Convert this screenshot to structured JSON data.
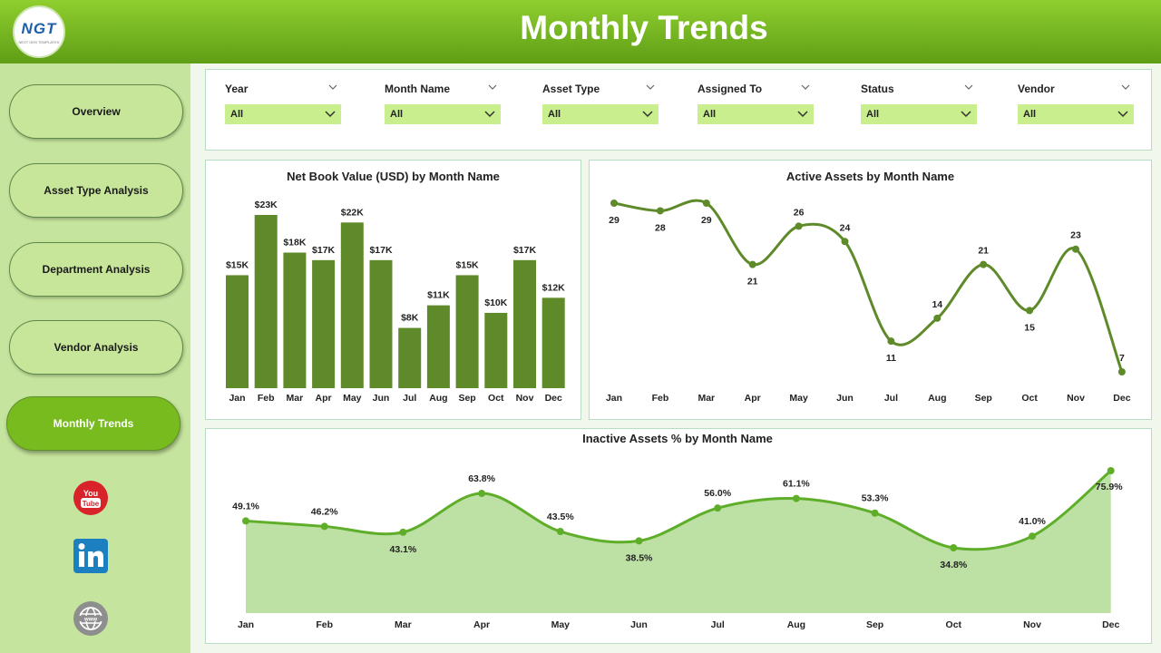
{
  "header": {
    "title": "Monthly Trends",
    "logo_text": "NGT",
    "logo_subtitle": "NEXT GEN TEMPLATES"
  },
  "sidebar": {
    "items": [
      {
        "label": "Overview"
      },
      {
        "label": "Asset Type Analysis"
      },
      {
        "label": "Department Analysis"
      },
      {
        "label": "Vendor Analysis"
      },
      {
        "label": "Monthly Trends"
      }
    ],
    "social_icons": [
      "youtube-icon",
      "linkedin-icon",
      "website-globe-icon"
    ]
  },
  "filters": [
    {
      "label": "Year",
      "value": "All"
    },
    {
      "label": "Month Name",
      "value": "All"
    },
    {
      "label": "Asset Type",
      "value": "All"
    },
    {
      "label": "Assigned To",
      "value": "All"
    },
    {
      "label": "Status",
      "value": "All"
    },
    {
      "label": "Vendor",
      "value": "All"
    }
  ],
  "colors": {
    "header": "#6aa91c",
    "bar": "#5e8a29",
    "line": "#5e8a29",
    "area_line": "#5fae2a",
    "area_fill": "#bde0a5"
  },
  "chart_data": [
    {
      "type": "bar",
      "title": "Net Book Value (USD) by Month Name",
      "categories": [
        "Jan",
        "Feb",
        "Mar",
        "Apr",
        "May",
        "Jun",
        "Jul",
        "Aug",
        "Sep",
        "Oct",
        "Nov",
        "Dec"
      ],
      "values": [
        15,
        23,
        18,
        17,
        22,
        17,
        8,
        11,
        15,
        10,
        17,
        12
      ],
      "data_labels": [
        "$15K",
        "$23K",
        "$18K",
        "$17K",
        "$22K",
        "$17K",
        "$8K",
        "$11K",
        "$15K",
        "$10K",
        "$17K",
        "$12K"
      ],
      "ylim": [
        0,
        25
      ]
    },
    {
      "type": "line",
      "title": "Active Assets by Month Name",
      "categories": [
        "Jan",
        "Feb",
        "Mar",
        "Apr",
        "May",
        "Jun",
        "Jul",
        "Aug",
        "Sep",
        "Oct",
        "Nov",
        "Dec"
      ],
      "values": [
        29,
        28,
        29,
        21,
        26,
        24,
        11,
        14,
        21,
        15,
        23,
        7
      ],
      "data_labels": [
        "29",
        "28",
        "29",
        "21",
        "26",
        "24",
        "11",
        "14",
        "21",
        "15",
        "23",
        "7"
      ],
      "ylim": [
        7,
        29
      ]
    },
    {
      "type": "area",
      "title": "Inactive Assets % by Month Name",
      "categories": [
        "Jan",
        "Feb",
        "Mar",
        "Apr",
        "May",
        "Jun",
        "Jul",
        "Aug",
        "Sep",
        "Oct",
        "Nov",
        "Dec"
      ],
      "values": [
        49.1,
        46.2,
        43.1,
        63.8,
        43.5,
        38.5,
        56.0,
        61.1,
        53.3,
        34.8,
        41.0,
        75.9
      ],
      "data_labels": [
        "49.1%",
        "46.2%",
        "43.1%",
        "63.8%",
        "43.5%",
        "38.5%",
        "56.0%",
        "61.1%",
        "53.3%",
        "34.8%",
        "41.0%",
        "75.9%"
      ],
      "ylim": [
        0,
        75.9
      ]
    }
  ]
}
